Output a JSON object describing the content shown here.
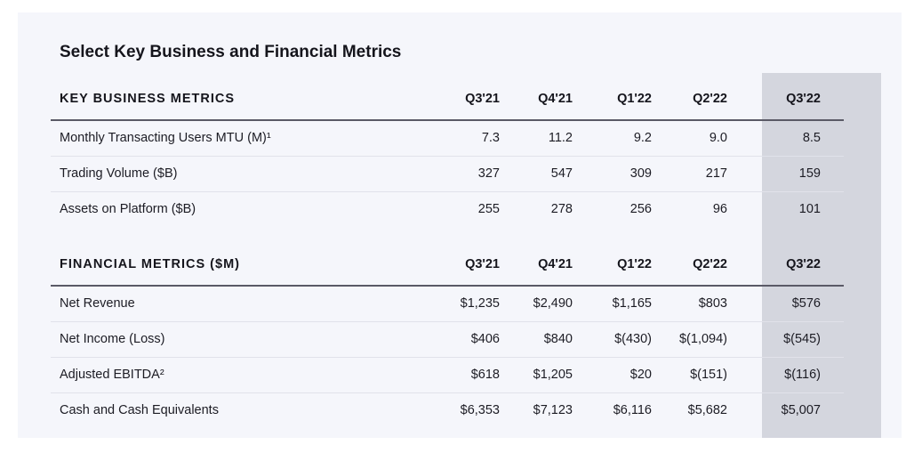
{
  "title": "Select Key Business and Financial Metrics",
  "business": {
    "header": {
      "label": "KEY BUSINESS METRICS",
      "quarters": [
        "Q3'21",
        "Q4'21",
        "Q1'22",
        "Q2'22",
        "Q3'22"
      ]
    },
    "rows": [
      {
        "label": "Monthly Transacting Users MTU (M)¹",
        "values": [
          "7.3",
          "11.2",
          "9.2",
          "9.0",
          "8.5"
        ]
      },
      {
        "label": "Trading Volume ($B)",
        "values": [
          "327",
          "547",
          "309",
          "217",
          "159"
        ]
      },
      {
        "label": "Assets on Platform ($B)",
        "values": [
          "255",
          "278",
          "256",
          "96",
          "101"
        ]
      }
    ]
  },
  "financial": {
    "header": {
      "label": "FINANCIAL METRICS ($M)",
      "quarters": [
        "Q3'21",
        "Q4'21",
        "Q1'22",
        "Q2'22",
        "Q3'22"
      ]
    },
    "rows": [
      {
        "label": "Net Revenue",
        "values": [
          "$1,235",
          "$2,490",
          "$1,165",
          "$803",
          "$576"
        ]
      },
      {
        "label": "Net Income (Loss)",
        "values": [
          "$406",
          "$840",
          "$(430)",
          "$(1,094)",
          "$(545)"
        ]
      },
      {
        "label": "Adjusted EBITDA²",
        "values": [
          "$618",
          "$1,205",
          "$20",
          "$(151)",
          "$(116)"
        ]
      },
      {
        "label": "Cash and Cash Equivalents",
        "values": [
          "$6,353",
          "$7,123",
          "$6,116",
          "$5,682",
          "$5,007"
        ]
      }
    ]
  },
  "colors": {
    "highlight_column": "#d4d6de",
    "panel_background": "#f5f6fb"
  }
}
